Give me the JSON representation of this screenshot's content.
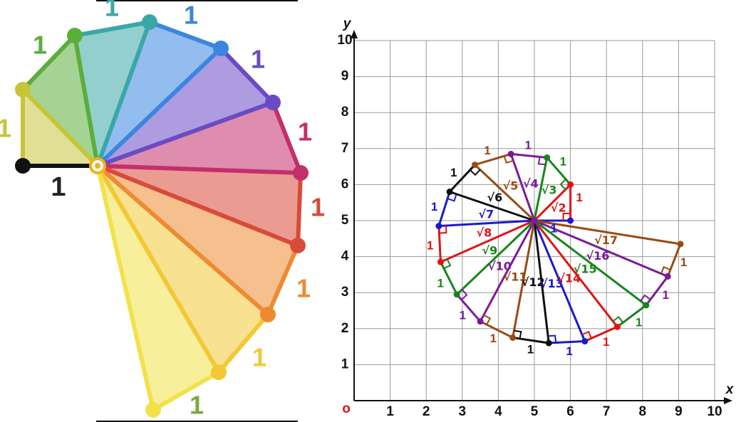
{
  "left_spiral": {
    "unit_label": "1",
    "side_labels": [
      "1",
      "1",
      "1",
      "1",
      "1",
      "1",
      "1",
      "1",
      "1",
      "1",
      "1",
      "1"
    ],
    "colors": [
      "#c8c43a",
      "#5aae3a",
      "#3aa7a7",
      "#3b86e0",
      "#6a4bc4",
      "#c2306c",
      "#d84a3a",
      "#ee8a32",
      "#f2c834",
      "#f2e24a",
      "#7ea83c"
    ]
  },
  "right_graph": {
    "origin_label": "o",
    "x_axis_label": "x",
    "y_axis_label": "y",
    "x_ticks": [
      "1",
      "2",
      "3",
      "4",
      "5",
      "6",
      "7",
      "8",
      "9",
      "10"
    ],
    "y_ticks": [
      "1",
      "2",
      "3",
      "4",
      "5",
      "6",
      "7",
      "8",
      "9",
      "10"
    ],
    "center": [
      5,
      5
    ],
    "points": [
      [
        6,
        5
      ],
      [
        6,
        6
      ],
      [
        5.35,
        6.75
      ],
      [
        4.35,
        6.85
      ],
      [
        3.35,
        6.55
      ],
      [
        2.65,
        5.8
      ],
      [
        2.35,
        4.85
      ],
      [
        2.4,
        3.85
      ],
      [
        2.85,
        2.95
      ],
      [
        3.5,
        2.2
      ],
      [
        4.4,
        1.75
      ],
      [
        5.4,
        1.6
      ],
      [
        6.4,
        1.65
      ],
      [
        7.3,
        2.05
      ],
      [
        8.1,
        2.65
      ],
      [
        8.7,
        3.45
      ],
      [
        9.05,
        4.35
      ]
    ],
    "spoke_labels": [
      "",
      "1",
      "√2",
      "√3",
      "√4",
      "√5",
      "√6",
      "√7",
      "√8",
      "√9",
      "√10",
      "√11",
      "√12",
      "√13",
      "√14",
      "√15",
      "√16",
      "√17"
    ],
    "edge_label": "1",
    "colors": [
      "#1a1acb",
      "#e01414",
      "#16861a",
      "#7a1a9a",
      "#9a4a12",
      "#101010"
    ]
  }
}
